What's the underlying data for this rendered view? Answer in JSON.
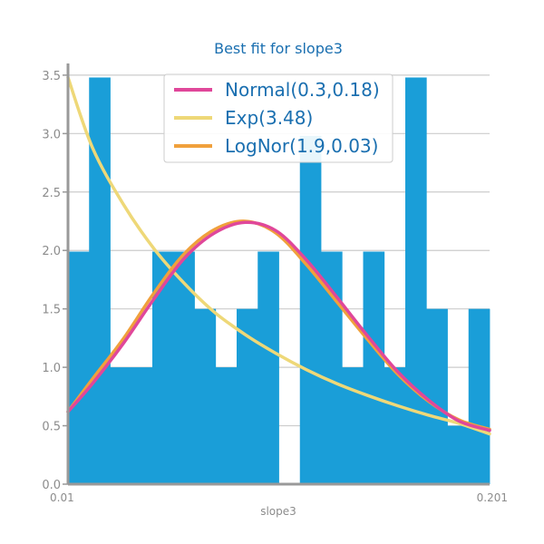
{
  "chart_data": {
    "type": "bar",
    "title": "Best fit for slope3",
    "xlabel": "slope3",
    "ylabel": "",
    "ylim": [
      0,
      3.6
    ],
    "yticks": [
      "0.0",
      "0.5",
      "1.0",
      "1.5",
      "2.0",
      "2.5",
      "3.0",
      "3.5"
    ],
    "x_range": [
      0.01,
      0.7
    ],
    "x_tick_labels": [
      "0.01",
      "0.201"
    ],
    "grid": "horizontal",
    "legend_position": "top-center",
    "histogram": {
      "color": "#1a9ed8",
      "bin_heights": [
        1.99,
        3.48,
        1.0,
        1.0,
        1.99,
        1.99,
        1.5,
        1.0,
        1.5,
        1.99,
        0.0,
        2.98,
        1.99,
        1.0,
        1.99,
        1.0,
        3.48,
        1.5,
        0.5,
        1.5
      ]
    },
    "series": [
      {
        "name": "Normal(0.3,0.18)",
        "type": "line",
        "color": "#e0479a",
        "x": [
          0.01,
          0.05,
          0.1,
          0.15,
          0.2,
          0.25,
          0.3,
          0.35,
          0.4,
          0.45,
          0.5,
          0.55,
          0.6,
          0.65,
          0.7
        ],
        "y": [
          0.62,
          0.86,
          1.2,
          1.58,
          1.93,
          2.15,
          2.24,
          2.17,
          1.92,
          1.6,
          1.27,
          0.96,
          0.72,
          0.54,
          0.46
        ]
      },
      {
        "name": "Exp(3.48)",
        "type": "line",
        "color": "#eed878",
        "x": [
          0.01,
          0.05,
          0.1,
          0.15,
          0.2,
          0.25,
          0.3,
          0.35,
          0.4,
          0.45,
          0.5,
          0.55,
          0.6,
          0.65,
          0.7
        ],
        "y": [
          3.48,
          2.88,
          2.4,
          2.02,
          1.72,
          1.47,
          1.28,
          1.12,
          0.98,
          0.86,
          0.76,
          0.67,
          0.59,
          0.52,
          0.43
        ]
      },
      {
        "name": "LogNor(1.9,0.03)",
        "type": "line",
        "color": "#f0a03c",
        "x": [
          0.01,
          0.05,
          0.1,
          0.15,
          0.2,
          0.25,
          0.3,
          0.35,
          0.4,
          0.45,
          0.5,
          0.55,
          0.6,
          0.65,
          0.7
        ],
        "y": [
          0.62,
          0.9,
          1.24,
          1.63,
          1.97,
          2.18,
          2.25,
          2.15,
          1.88,
          1.56,
          1.24,
          0.94,
          0.71,
          0.55,
          0.47
        ]
      }
    ]
  }
}
